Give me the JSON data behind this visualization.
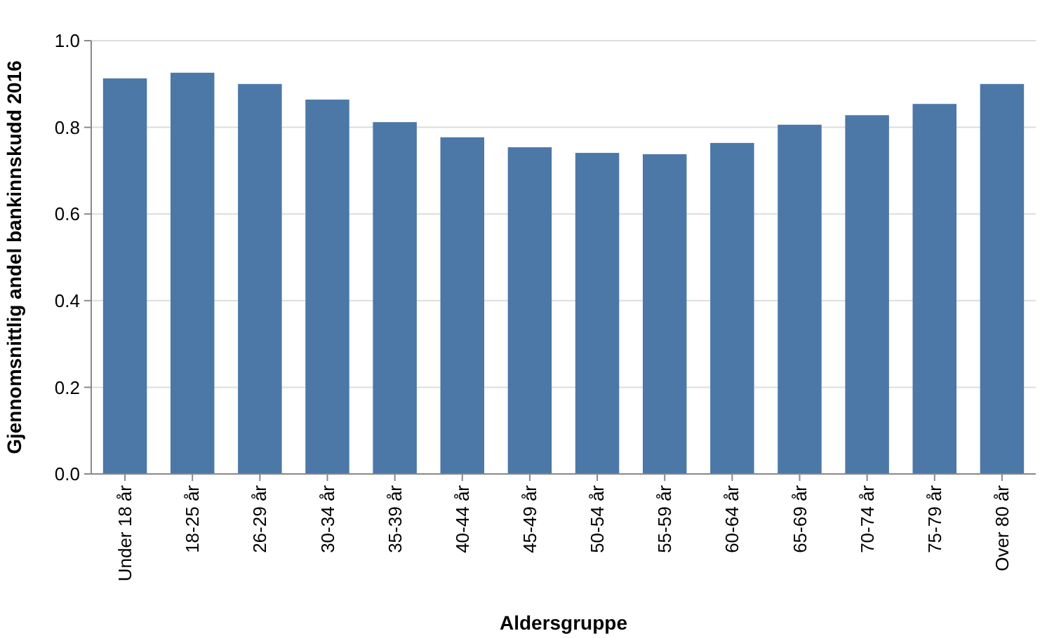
{
  "chart_data": {
    "type": "bar",
    "xlabel": "Aldersgruppe",
    "ylabel": "Gjennomsnittlig andel bankinnskudd 2016",
    "categories": [
      "Under 18 år",
      "18-25 år",
      "26-29 år",
      "30-34 år",
      "35-39 år",
      "40-44 år",
      "45-49 år",
      "50-54 år",
      "55-59 år",
      "60-64 år",
      "65-69 år",
      "70-74 år",
      "75-79 år",
      "Over 80 år"
    ],
    "values": [
      0.913,
      0.926,
      0.9,
      0.864,
      0.812,
      0.777,
      0.754,
      0.741,
      0.738,
      0.764,
      0.806,
      0.828,
      0.854,
      0.9
    ],
    "color": "#4c78a8",
    "ylim": [
      0,
      1
    ],
    "yticks": [
      {
        "value": 0,
        "label": "0.0"
      },
      {
        "value": 0.2,
        "label": "0.2"
      },
      {
        "value": 0.4,
        "label": "0.4"
      },
      {
        "value": 0.6,
        "label": "0.6"
      },
      {
        "value": 0.8,
        "label": "0.8"
      },
      {
        "value": 1,
        "label": "1.0"
      }
    ],
    "grid": "y"
  }
}
